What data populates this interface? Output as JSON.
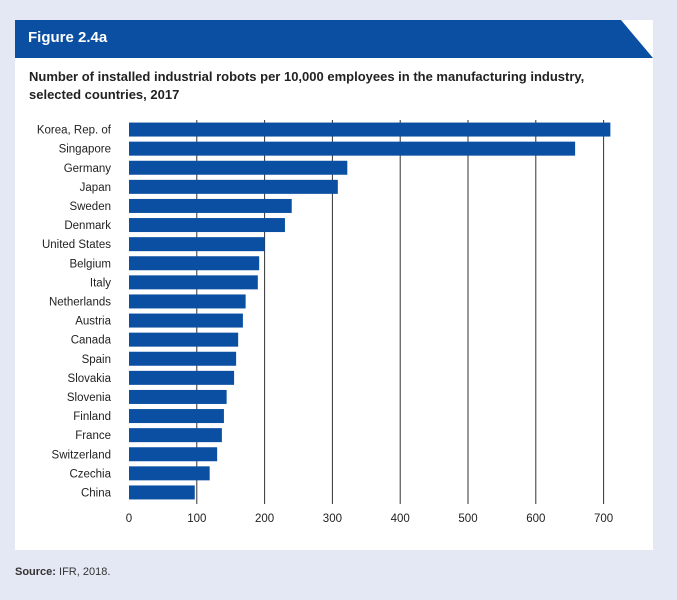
{
  "figure": {
    "label": "Figure 2.4a",
    "title": "Number of installed industrial robots per 10,000 employees in the manufacturing industry, selected countries, 2017"
  },
  "source": {
    "label": "Source:",
    "text": "IFR, 2018."
  },
  "colors": {
    "header": "#0a4fa2",
    "bar": "#0a4fa2",
    "background": "#e4e7f4",
    "gridline": "#333333"
  },
  "chart_data": {
    "type": "bar",
    "orientation": "horizontal",
    "title": "Number of installed industrial robots per 10,000 employees in the manufacturing industry, selected countries, 2017",
    "xlabel": "",
    "ylabel": "",
    "categories": [
      "Korea, Rep. of",
      "Singapore",
      "Germany",
      "Japan",
      "Sweden",
      "Denmark",
      "United States",
      "Belgium",
      "Italy",
      "Netherlands",
      "Austria",
      "Canada",
      "Spain",
      "Slovakia",
      "Slovenia",
      "Finland",
      "France",
      "Switzerland",
      "Czechia",
      "China"
    ],
    "values": [
      710,
      658,
      322,
      308,
      240,
      230,
      200,
      192,
      190,
      172,
      168,
      161,
      158,
      155,
      144,
      140,
      137,
      130,
      119,
      97
    ],
    "xlim": [
      0,
      700
    ],
    "xticks": [
      0,
      100,
      200,
      300,
      400,
      500,
      600,
      700
    ],
    "grid": true
  }
}
